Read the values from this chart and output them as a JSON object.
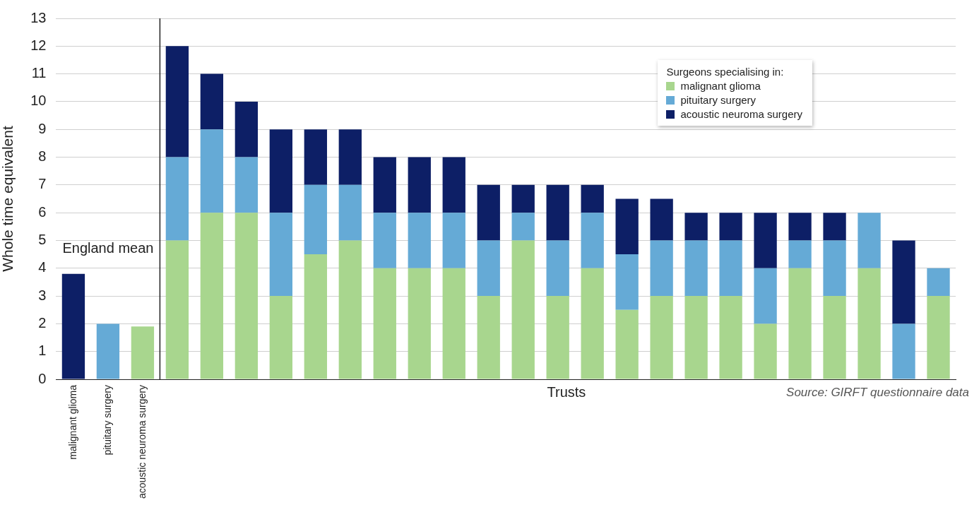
{
  "chart_data": {
    "type": "bar",
    "stacked": true,
    "ylabel": "Whole time equivalent",
    "xlabel": "Trusts",
    "legend_title": "Surgeons specialising in:",
    "legend": "top right",
    "categories": [
      "malignant glioma",
      "pituitary surgery",
      "acoustic neuroma surgery",
      null,
      null,
      null,
      null,
      null,
      null,
      null,
      null,
      null,
      null,
      null,
      null,
      null,
      null,
      null,
      null,
      null,
      null,
      null,
      null,
      null,
      null,
      null
    ],
    "series": [
      {
        "colors": [
          "#0d1f66",
          "#65aad6",
          "#a8d68e",
          "#0d1f66",
          "#0d1f66",
          "#0d1f66",
          "#0d1f66",
          "#0d1f66",
          "#0d1f66",
          "#0d1f66",
          "#0d1f66",
          "#0d1f66",
          "#0d1f66",
          "#0d1f66",
          "#0d1f66",
          "#0d1f66",
          "#0d1f66",
          "#0d1f66",
          "#0d1f66",
          "#0d1f66",
          "#0d1f66",
          "#0d1f66",
          "#0d1f66",
          "#0d1f66",
          "#0d1f66",
          "#0d1f66"
        ],
        "values": [
          3.8,
          2,
          1.9,
          null,
          null,
          null,
          null,
          null,
          null,
          null,
          null,
          null,
          null,
          null,
          null,
          null,
          null,
          null,
          null,
          null,
          null,
          null,
          null,
          null,
          null,
          null
        ]
      },
      {
        "name": "malignant glioma",
        "color": "#a8d68e",
        "values": [
          null,
          null,
          null,
          5,
          6,
          6,
          3,
          4.5,
          5,
          4,
          4,
          4,
          3,
          5,
          3,
          4,
          2.5,
          3,
          3,
          3,
          2,
          4,
          3,
          4,
          0,
          3
        ]
      },
      {
        "name": "pituitary surgery",
        "color": "#65aad6",
        "values": [
          null,
          null,
          null,
          3,
          3,
          2,
          3,
          2.5,
          2,
          2,
          2,
          2,
          2,
          1,
          2,
          2,
          2,
          2,
          2,
          2,
          2,
          1,
          2,
          2,
          2,
          1
        ]
      },
      {
        "name": "acoustic neuroma surgery",
        "color": "#0d1f66",
        "values": [
          null,
          null,
          null,
          4,
          2,
          2,
          3,
          2,
          2,
          2,
          2,
          2,
          2,
          1,
          2,
          1,
          2,
          1.5,
          1,
          1,
          2,
          1,
          1,
          0,
          3,
          0
        ]
      }
    ],
    "ylim": [
      0,
      13
    ],
    "yticks": [
      0,
      1,
      2,
      3,
      4,
      5,
      6,
      7,
      8,
      9,
      10,
      11,
      12,
      13
    ],
    "grid": "y",
    "annotations": [
      "England mean",
      "Source: GIRFT questionnaire data"
    ]
  }
}
